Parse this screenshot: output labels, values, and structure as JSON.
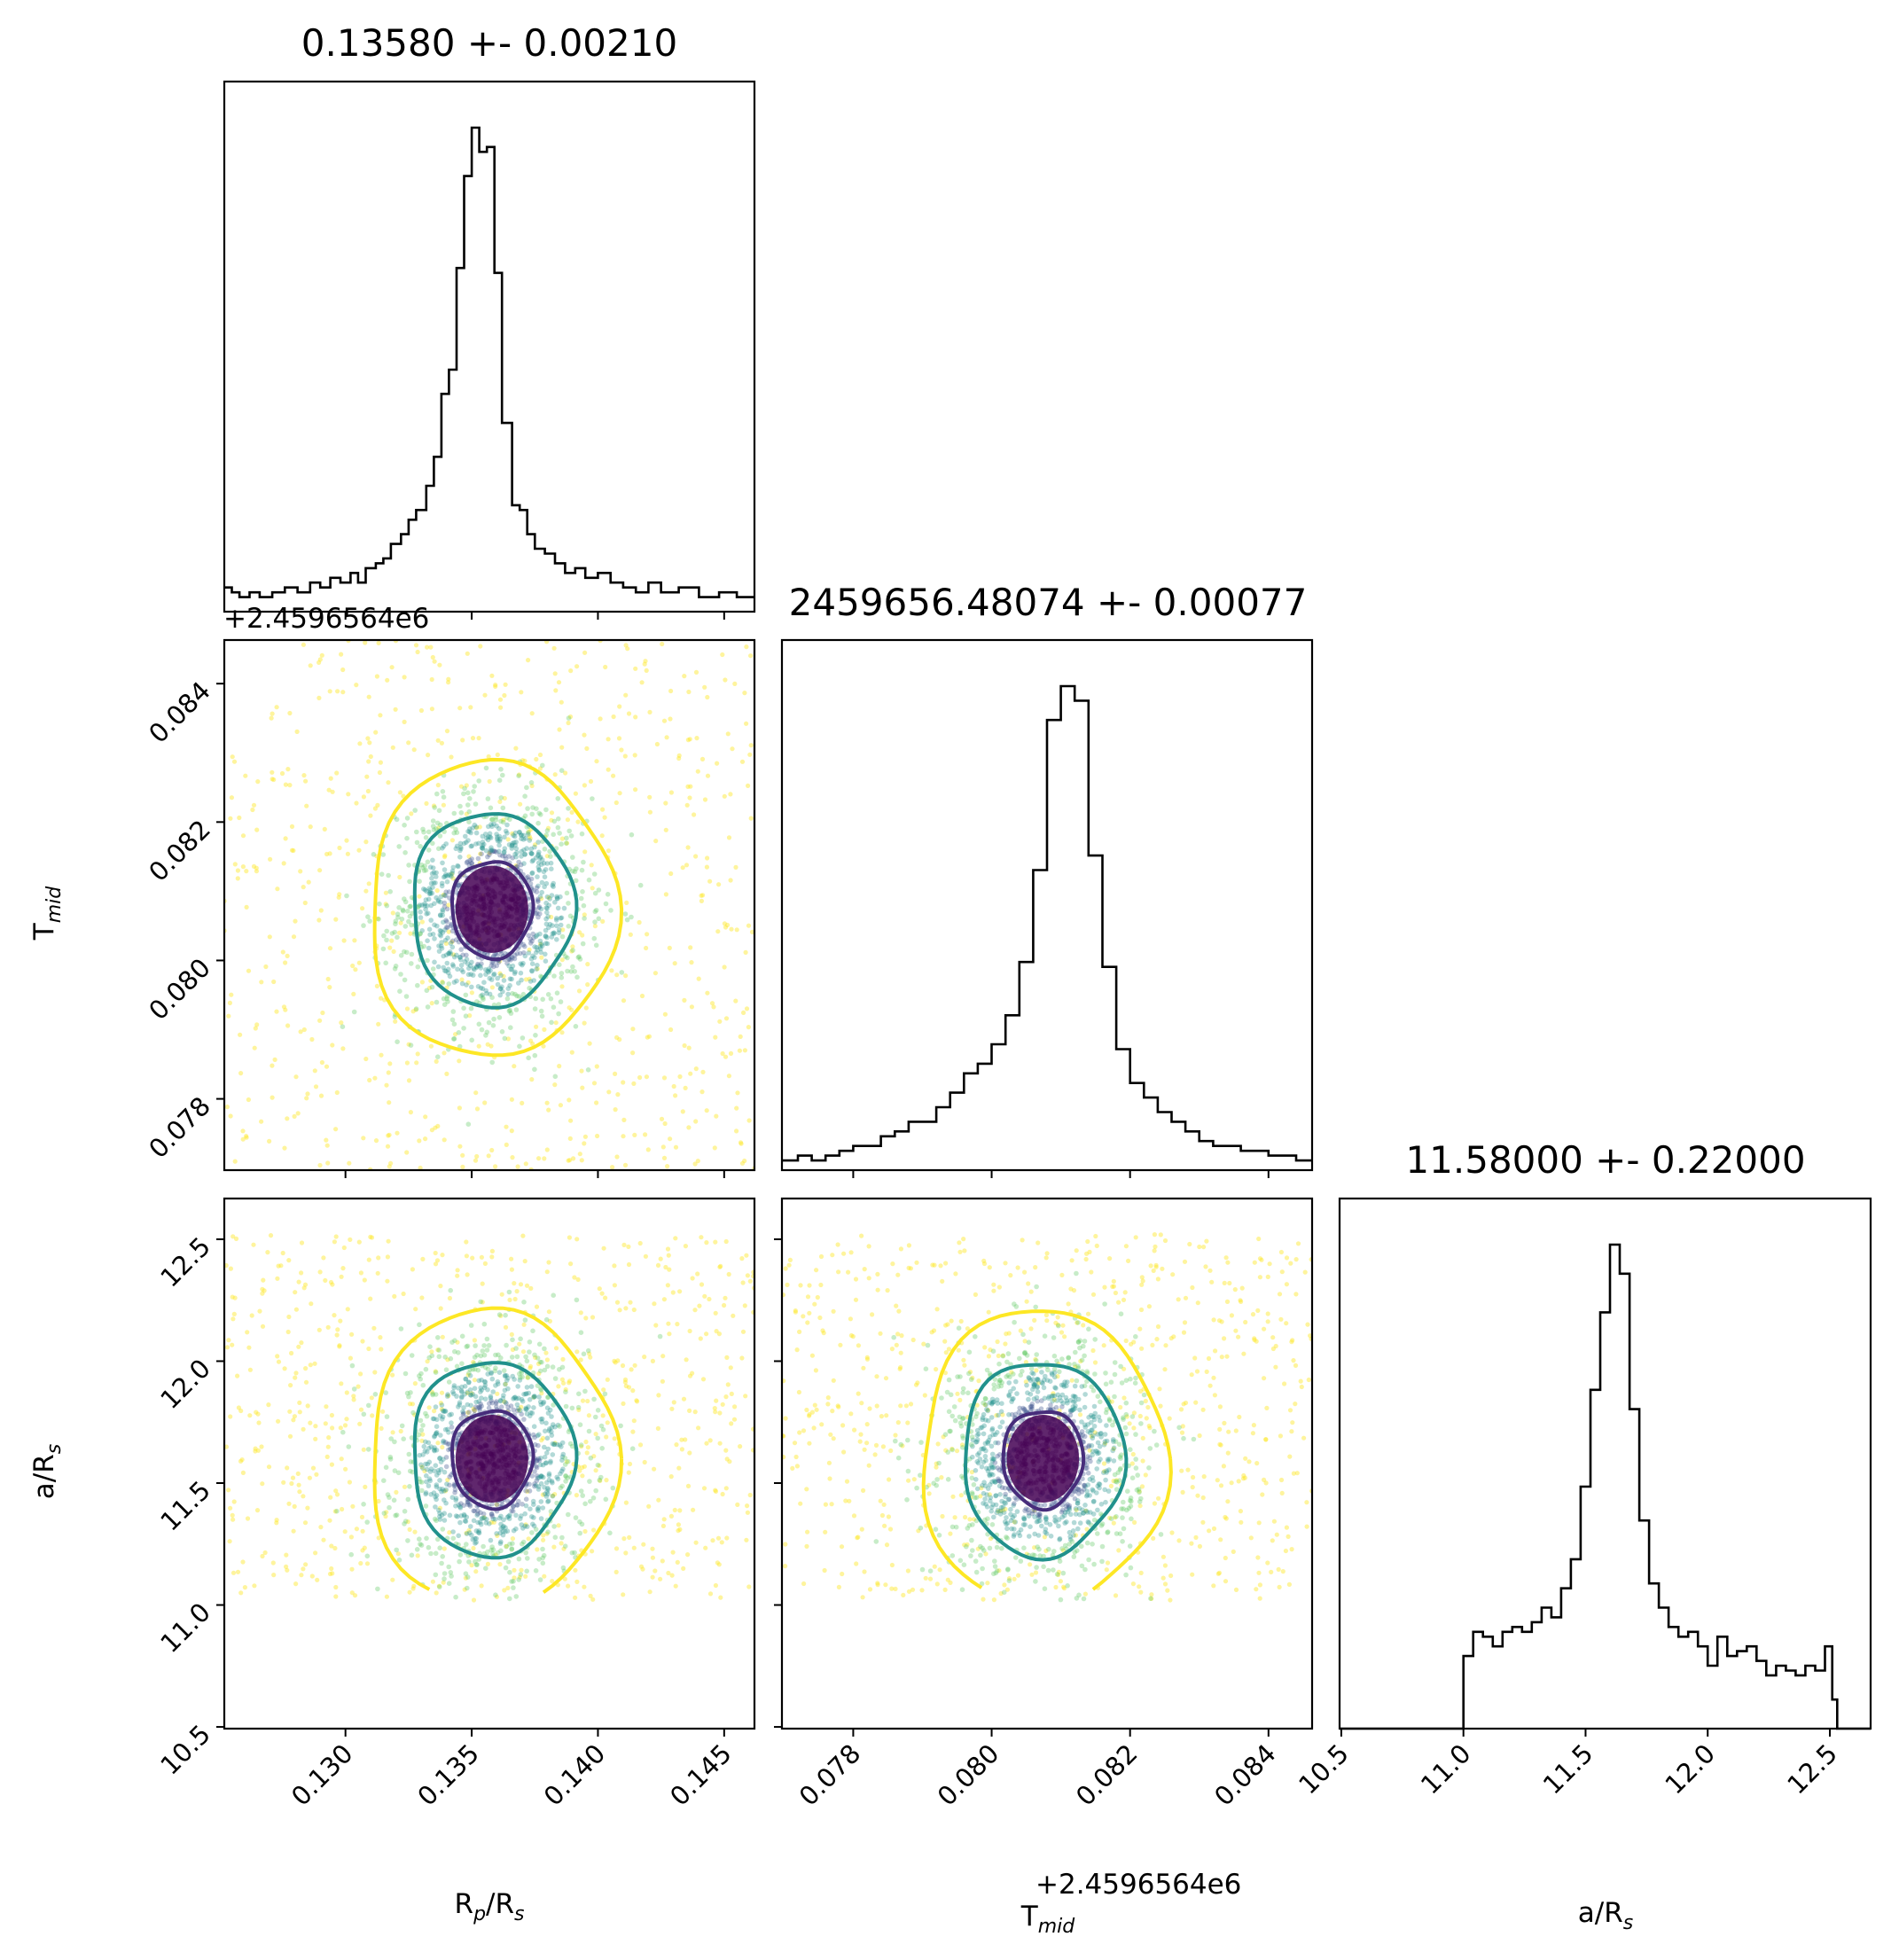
{
  "chart_data": {
    "type": "corner",
    "parameters": [
      {
        "key": "rprs",
        "label_main": "R",
        "label_sub": "p",
        "label_rest": "/R",
        "label_sub2": "s"
      },
      {
        "key": "tmid",
        "label_main": "T",
        "label_sub": "mid",
        "label_rest": "",
        "label_sub2": ""
      },
      {
        "key": "ars",
        "label_main": "a/R",
        "label_sub": "s",
        "label_rest": "",
        "label_sub2": ""
      }
    ],
    "titles": [
      "0.13580 +- 0.00210",
      "2459656.48074 +- 0.00077",
      "11.58000 +- 0.22000"
    ],
    "offset_text": "+2.4596564e6",
    "ranges": {
      "rprs": [
        0.1252,
        0.1462
      ],
      "tmid": [
        0.07697,
        0.08463
      ],
      "ars": [
        10.493,
        12.667
      ]
    },
    "ticks": {
      "rprs": [
        0.13,
        0.135,
        0.14,
        0.145
      ],
      "tmid": [
        0.078,
        0.08,
        0.082,
        0.084
      ],
      "ars": [
        10.5,
        11.0,
        11.5,
        12.0,
        12.5
      ]
    },
    "tick_labels": {
      "rprs": [
        "0.130",
        "0.135",
        "0.140",
        "0.145"
      ],
      "tmid": [
        "0.078",
        "0.080",
        "0.082",
        "0.084"
      ],
      "ars": [
        "10.5",
        "11.0",
        "11.5",
        "12.0",
        "12.5"
      ]
    },
    "medians": {
      "rprs": 0.1358,
      "tmid": 0.08074,
      "ars": 11.58
    },
    "contour_levels": [
      {
        "name": "inner",
        "color": "#472d7b"
      },
      {
        "name": "middle",
        "color": "#21918c"
      },
      {
        "name": "outer",
        "color": "#fde725"
      }
    ],
    "scatter_colors": [
      "#fde725",
      "#5ec962",
      "#21918c",
      "#3b528b",
      "#440154"
    ],
    "hist_rprs": [
      {
        "lo": 0.1252,
        "hi": 0.1255,
        "v": 0.05
      },
      {
        "lo": 0.1255,
        "hi": 0.1258,
        "v": 0.04
      },
      {
        "lo": 0.1258,
        "hi": 0.1262,
        "v": 0.03
      },
      {
        "lo": 0.1262,
        "hi": 0.1266,
        "v": 0.04
      },
      {
        "lo": 0.1266,
        "hi": 0.1271,
        "v": 0.03
      },
      {
        "lo": 0.1271,
        "hi": 0.1276,
        "v": 0.04
      },
      {
        "lo": 0.1276,
        "hi": 0.1281,
        "v": 0.05
      },
      {
        "lo": 0.1281,
        "hi": 0.1286,
        "v": 0.04
      },
      {
        "lo": 0.1286,
        "hi": 0.129,
        "v": 0.06
      },
      {
        "lo": 0.129,
        "hi": 0.1294,
        "v": 0.05
      },
      {
        "lo": 0.1294,
        "hi": 0.1298,
        "v": 0.07
      },
      {
        "lo": 0.1298,
        "hi": 0.1302,
        "v": 0.06
      },
      {
        "lo": 0.1302,
        "hi": 0.1305,
        "v": 0.08
      },
      {
        "lo": 0.1305,
        "hi": 0.1308,
        "v": 0.06
      },
      {
        "lo": 0.1308,
        "hi": 0.1312,
        "v": 0.09
      },
      {
        "lo": 0.1312,
        "hi": 0.1315,
        "v": 0.1
      },
      {
        "lo": 0.1315,
        "hi": 0.1318,
        "v": 0.11
      },
      {
        "lo": 0.1318,
        "hi": 0.1322,
        "v": 0.14
      },
      {
        "lo": 0.1322,
        "hi": 0.1325,
        "v": 0.16
      },
      {
        "lo": 0.1325,
        "hi": 0.1328,
        "v": 0.19
      },
      {
        "lo": 0.1328,
        "hi": 0.1332,
        "v": 0.21
      },
      {
        "lo": 0.1332,
        "hi": 0.1335,
        "v": 0.26
      },
      {
        "lo": 0.1335,
        "hi": 0.1338,
        "v": 0.32
      },
      {
        "lo": 0.1338,
        "hi": 0.1341,
        "v": 0.45
      },
      {
        "lo": 0.1341,
        "hi": 0.1344,
        "v": 0.5
      },
      {
        "lo": 0.1344,
        "hi": 0.1347,
        "v": 0.71
      },
      {
        "lo": 0.1347,
        "hi": 0.135,
        "v": 0.9
      },
      {
        "lo": 0.135,
        "hi": 0.1353,
        "v": 1.0
      },
      {
        "lo": 0.1353,
        "hi": 0.1356,
        "v": 0.95
      },
      {
        "lo": 0.1356,
        "hi": 0.1359,
        "v": 0.96
      },
      {
        "lo": 0.1359,
        "hi": 0.1362,
        "v": 0.7
      },
      {
        "lo": 0.1362,
        "hi": 0.1366,
        "v": 0.39
      },
      {
        "lo": 0.1366,
        "hi": 0.1369,
        "v": 0.22
      },
      {
        "lo": 0.1369,
        "hi": 0.1372,
        "v": 0.21
      },
      {
        "lo": 0.1372,
        "hi": 0.1375,
        "v": 0.16
      },
      {
        "lo": 0.1375,
        "hi": 0.1379,
        "v": 0.13
      },
      {
        "lo": 0.1379,
        "hi": 0.1383,
        "v": 0.12
      },
      {
        "lo": 0.1383,
        "hi": 0.1387,
        "v": 0.1
      },
      {
        "lo": 0.1387,
        "hi": 0.1391,
        "v": 0.08
      },
      {
        "lo": 0.1391,
        "hi": 0.1395,
        "v": 0.09
      },
      {
        "lo": 0.1395,
        "hi": 0.14,
        "v": 0.07
      },
      {
        "lo": 0.14,
        "hi": 0.1405,
        "v": 0.08
      },
      {
        "lo": 0.1405,
        "hi": 0.141,
        "v": 0.06
      },
      {
        "lo": 0.141,
        "hi": 0.1415,
        "v": 0.05
      },
      {
        "lo": 0.1415,
        "hi": 0.142,
        "v": 0.04
      },
      {
        "lo": 0.142,
        "hi": 0.1425,
        "v": 0.06
      },
      {
        "lo": 0.1425,
        "hi": 0.1432,
        "v": 0.04
      },
      {
        "lo": 0.1432,
        "hi": 0.144,
        "v": 0.05
      },
      {
        "lo": 0.144,
        "hi": 0.1448,
        "v": 0.03
      },
      {
        "lo": 0.1448,
        "hi": 0.1455,
        "v": 0.04
      },
      {
        "lo": 0.1455,
        "hi": 0.1462,
        "v": 0.03
      }
    ],
    "hist_tmid": [
      {
        "lo": 0.07697,
        "hi": 0.0772,
        "v": 0.02
      },
      {
        "lo": 0.0772,
        "hi": 0.0774,
        "v": 0.03
      },
      {
        "lo": 0.0774,
        "hi": 0.0776,
        "v": 0.02
      },
      {
        "lo": 0.0776,
        "hi": 0.0778,
        "v": 0.03
      },
      {
        "lo": 0.0778,
        "hi": 0.078,
        "v": 0.04
      },
      {
        "lo": 0.078,
        "hi": 0.0782,
        "v": 0.05
      },
      {
        "lo": 0.0782,
        "hi": 0.0784,
        "v": 0.05
      },
      {
        "lo": 0.0784,
        "hi": 0.0786,
        "v": 0.07
      },
      {
        "lo": 0.0786,
        "hi": 0.0788,
        "v": 0.08
      },
      {
        "lo": 0.0788,
        "hi": 0.079,
        "v": 0.1
      },
      {
        "lo": 0.079,
        "hi": 0.0792,
        "v": 0.1
      },
      {
        "lo": 0.0792,
        "hi": 0.0794,
        "v": 0.13
      },
      {
        "lo": 0.0794,
        "hi": 0.0796,
        "v": 0.16
      },
      {
        "lo": 0.0796,
        "hi": 0.0798,
        "v": 0.2
      },
      {
        "lo": 0.0798,
        "hi": 0.08,
        "v": 0.22
      },
      {
        "lo": 0.08,
        "hi": 0.0802,
        "v": 0.26
      },
      {
        "lo": 0.0802,
        "hi": 0.0804,
        "v": 0.32
      },
      {
        "lo": 0.0804,
        "hi": 0.0806,
        "v": 0.43
      },
      {
        "lo": 0.0806,
        "hi": 0.0808,
        "v": 0.62
      },
      {
        "lo": 0.0808,
        "hi": 0.081,
        "v": 0.93
      },
      {
        "lo": 0.081,
        "hi": 0.0812,
        "v": 1.0
      },
      {
        "lo": 0.0812,
        "hi": 0.0814,
        "v": 0.97
      },
      {
        "lo": 0.0814,
        "hi": 0.0816,
        "v": 0.65
      },
      {
        "lo": 0.0816,
        "hi": 0.0818,
        "v": 0.42
      },
      {
        "lo": 0.0818,
        "hi": 0.082,
        "v": 0.25
      },
      {
        "lo": 0.082,
        "hi": 0.0822,
        "v": 0.18
      },
      {
        "lo": 0.0822,
        "hi": 0.0824,
        "v": 0.15
      },
      {
        "lo": 0.0824,
        "hi": 0.0826,
        "v": 0.12
      },
      {
        "lo": 0.0826,
        "hi": 0.0828,
        "v": 0.1
      },
      {
        "lo": 0.0828,
        "hi": 0.083,
        "v": 0.08
      },
      {
        "lo": 0.083,
        "hi": 0.0832,
        "v": 0.06
      },
      {
        "lo": 0.0832,
        "hi": 0.0834,
        "v": 0.05
      },
      {
        "lo": 0.0834,
        "hi": 0.0836,
        "v": 0.05
      },
      {
        "lo": 0.0836,
        "hi": 0.0838,
        "v": 0.04
      },
      {
        "lo": 0.0838,
        "hi": 0.084,
        "v": 0.04
      },
      {
        "lo": 0.084,
        "hi": 0.0842,
        "v": 0.03
      },
      {
        "lo": 0.0842,
        "hi": 0.0844,
        "v": 0.03
      },
      {
        "lo": 0.0844,
        "hi": 0.08463,
        "v": 0.02
      }
    ],
    "hist_ars": [
      {
        "lo": 10.493,
        "hi": 11.0,
        "v": 0.0
      },
      {
        "lo": 11.0,
        "hi": 11.04,
        "v": 0.15
      },
      {
        "lo": 11.04,
        "hi": 11.08,
        "v": 0.2
      },
      {
        "lo": 11.08,
        "hi": 11.12,
        "v": 0.19
      },
      {
        "lo": 11.12,
        "hi": 11.16,
        "v": 0.17
      },
      {
        "lo": 11.16,
        "hi": 11.2,
        "v": 0.2
      },
      {
        "lo": 11.2,
        "hi": 11.24,
        "v": 0.21
      },
      {
        "lo": 11.24,
        "hi": 11.28,
        "v": 0.2
      },
      {
        "lo": 11.28,
        "hi": 11.32,
        "v": 0.22
      },
      {
        "lo": 11.32,
        "hi": 11.36,
        "v": 0.25
      },
      {
        "lo": 11.36,
        "hi": 11.4,
        "v": 0.23
      },
      {
        "lo": 11.4,
        "hi": 11.44,
        "v": 0.29
      },
      {
        "lo": 11.44,
        "hi": 11.48,
        "v": 0.35
      },
      {
        "lo": 11.48,
        "hi": 11.52,
        "v": 0.5
      },
      {
        "lo": 11.52,
        "hi": 11.56,
        "v": 0.7
      },
      {
        "lo": 11.56,
        "hi": 11.6,
        "v": 0.86
      },
      {
        "lo": 11.6,
        "hi": 11.64,
        "v": 1.0
      },
      {
        "lo": 11.64,
        "hi": 11.68,
        "v": 0.94
      },
      {
        "lo": 11.68,
        "hi": 11.72,
        "v": 0.66
      },
      {
        "lo": 11.72,
        "hi": 11.76,
        "v": 0.43
      },
      {
        "lo": 11.76,
        "hi": 11.8,
        "v": 0.3
      },
      {
        "lo": 11.8,
        "hi": 11.84,
        "v": 0.25
      },
      {
        "lo": 11.84,
        "hi": 11.88,
        "v": 0.21
      },
      {
        "lo": 11.88,
        "hi": 11.92,
        "v": 0.19
      },
      {
        "lo": 11.92,
        "hi": 11.96,
        "v": 0.2
      },
      {
        "lo": 11.96,
        "hi": 12.0,
        "v": 0.17
      },
      {
        "lo": 12.0,
        "hi": 12.04,
        "v": 0.13
      },
      {
        "lo": 12.04,
        "hi": 12.08,
        "v": 0.19
      },
      {
        "lo": 12.08,
        "hi": 12.12,
        "v": 0.15
      },
      {
        "lo": 12.12,
        "hi": 12.16,
        "v": 0.16
      },
      {
        "lo": 12.16,
        "hi": 12.2,
        "v": 0.17
      },
      {
        "lo": 12.2,
        "hi": 12.24,
        "v": 0.14
      },
      {
        "lo": 12.24,
        "hi": 12.28,
        "v": 0.11
      },
      {
        "lo": 12.28,
        "hi": 12.32,
        "v": 0.13
      },
      {
        "lo": 12.32,
        "hi": 12.36,
        "v": 0.12
      },
      {
        "lo": 12.36,
        "hi": 12.4,
        "v": 0.11
      },
      {
        "lo": 12.4,
        "hi": 12.44,
        "v": 0.13
      },
      {
        "lo": 12.44,
        "hi": 12.48,
        "v": 0.12
      },
      {
        "lo": 12.48,
        "hi": 12.51,
        "v": 0.17
      },
      {
        "lo": 12.51,
        "hi": 12.53,
        "v": 0.06
      },
      {
        "lo": 12.53,
        "hi": 12.667,
        "v": 0.0
      }
    ]
  }
}
